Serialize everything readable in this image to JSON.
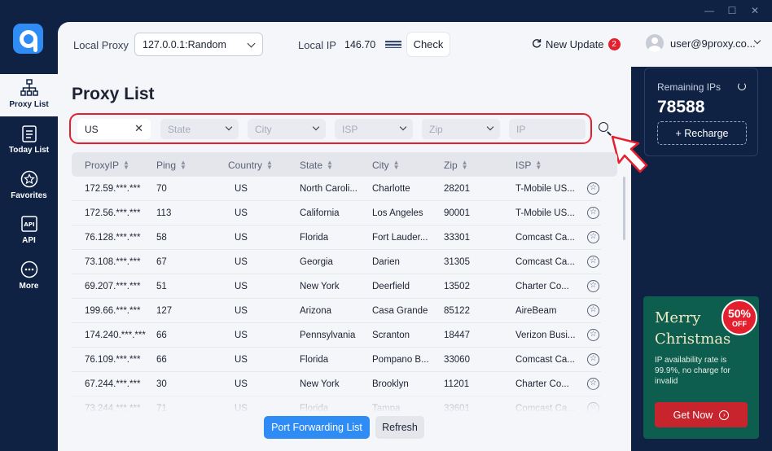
{
  "window": {
    "minimize": "—",
    "maximize": "☐",
    "close": "✕"
  },
  "sidebar": {
    "items": [
      {
        "label": "Proxy List",
        "icon": "network-icon"
      },
      {
        "label": "Today List",
        "icon": "clipboard-list-icon"
      },
      {
        "label": "Favorites",
        "icon": "star-icon"
      },
      {
        "label": "API",
        "icon": "api-icon"
      },
      {
        "label": "More",
        "icon": "more-icon"
      }
    ]
  },
  "header": {
    "local_proxy_label": "Local Proxy",
    "local_proxy_value": "127.0.0.1:Random",
    "local_ip_label": "Local IP",
    "local_ip_value": "146.70",
    "check_label": "Check",
    "update_label": "New Update",
    "update_count": "2",
    "user_email": "user@9proxy.co..."
  },
  "main": {
    "title": "Proxy List",
    "filters": {
      "country_value": "US",
      "state_placeholder": "State",
      "city_placeholder": "City",
      "isp_placeholder": "ISP",
      "zip_placeholder": "Zip",
      "ip_placeholder": "IP"
    },
    "columns": [
      "ProxyIP",
      "Ping",
      "Country",
      "State",
      "City",
      "Zip",
      "ISP"
    ],
    "rows": [
      {
        "ip": "172.59.***.***",
        "ping": "70",
        "country": "US",
        "state": "North Caroli...",
        "city": "Charlotte",
        "zip": "28201",
        "isp": "T-Mobile US..."
      },
      {
        "ip": "172.56.***.***",
        "ping": "113",
        "country": "US",
        "state": "California",
        "city": "Los Angeles",
        "zip": "90001",
        "isp": "T-Mobile US..."
      },
      {
        "ip": "76.128.***.***",
        "ping": "58",
        "country": "US",
        "state": "Florida",
        "city": "Fort Lauder...",
        "zip": "33301",
        "isp": "Comcast Ca..."
      },
      {
        "ip": "73.108.***.***",
        "ping": "67",
        "country": "US",
        "state": "Georgia",
        "city": "Darien",
        "zip": "31305",
        "isp": "Comcast Ca..."
      },
      {
        "ip": "69.207.***.***",
        "ping": "51",
        "country": "US",
        "state": "New York",
        "city": "Deerfield",
        "zip": "13502",
        "isp": "Charter Co..."
      },
      {
        "ip": "199.66.***.***",
        "ping": "127",
        "country": "US",
        "state": "Arizona",
        "city": "Casa Grande",
        "zip": "85122",
        "isp": "AireBeam"
      },
      {
        "ip": "174.240.***.***",
        "ping": "66",
        "country": "US",
        "state": "Pennsylvania",
        "city": "Scranton",
        "zip": "18447",
        "isp": "Verizon Busi..."
      },
      {
        "ip": "76.109.***.***",
        "ping": "66",
        "country": "US",
        "state": "Florida",
        "city": "Pompano B...",
        "zip": "33060",
        "isp": "Comcast Ca..."
      },
      {
        "ip": "67.244.***.***",
        "ping": "30",
        "country": "US",
        "state": "New York",
        "city": "Brooklyn",
        "zip": "11201",
        "isp": "Charter Co..."
      },
      {
        "ip": "73.244.***.***",
        "ping": "71",
        "country": "US",
        "state": "Florida",
        "city": "Tampa",
        "zip": "33601",
        "isp": "Comcast Ca..."
      }
    ],
    "port_forwarding_label": "Port Forwarding List",
    "refresh_label": "Refresh"
  },
  "ips_card": {
    "label": "Remaining IPs",
    "count": "78588",
    "recharge_label": "+ Recharge"
  },
  "promo": {
    "title_line1": "Merry",
    "title_line2": "Christmas",
    "discount": "50%",
    "discount_suffix": "OFF",
    "text": "IP availability rate is 99.9%, no charge for invalid",
    "button_label": "Get Now"
  },
  "colors": {
    "accent": "#2f8cf5",
    "navy": "#0f2244",
    "highlight": "#e5202e",
    "promo_green": "#0d5e4e"
  }
}
